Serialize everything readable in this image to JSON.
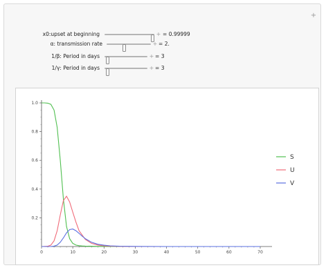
{
  "controls": [
    {
      "label": "x0:upset at beginning",
      "value": "0.99999",
      "fraction": 0.97
    },
    {
      "label": "α: transmission rate",
      "value": "2.",
      "fraction": 0.4
    },
    {
      "label": "1/β: Period in days",
      "value": "3",
      "fraction": 0.08
    },
    {
      "label": "1/γ: Period in days",
      "value": "3",
      "fraction": 0.08
    }
  ],
  "icons": {
    "panel_toggle": "plus-icon",
    "add_button": "plus-icon"
  },
  "plus_glyph": "+",
  "value_prefix": "=",
  "chart_data": {
    "type": "line",
    "title": "",
    "xlabel": "",
    "ylabel": "",
    "xlim": [
      0,
      72
    ],
    "ylim": [
      0,
      1.0
    ],
    "x_ticks": [
      0,
      10,
      20,
      30,
      40,
      50,
      60,
      70
    ],
    "y_ticks": [
      0.2,
      0.4,
      0.6,
      0.8,
      1.0
    ],
    "legend_position": "right",
    "series": [
      {
        "name": "S",
        "color": "#4fbf4f",
        "x": [
          0,
          1,
          2,
          3,
          4,
          5,
          6,
          7,
          8,
          9,
          10,
          11,
          12,
          13,
          14,
          16,
          18,
          20,
          25,
          30,
          40,
          50,
          60,
          70
        ],
        "y": [
          1.0,
          1.0,
          0.998,
          0.99,
          0.95,
          0.83,
          0.6,
          0.33,
          0.14,
          0.055,
          0.022,
          0.01,
          0.006,
          0.004,
          0.003,
          0.002,
          0.001,
          0.001,
          0.0,
          0.0,
          0.0,
          0.0,
          0.0,
          0.0
        ]
      },
      {
        "name": "U",
        "color": "#f06a78",
        "x": [
          0,
          2,
          3,
          4,
          5,
          6,
          7,
          8,
          9,
          10,
          11,
          12,
          14,
          16,
          18,
          20,
          22,
          25,
          30,
          40,
          50,
          60,
          70
        ],
        "y": [
          0.0,
          0.002,
          0.01,
          0.04,
          0.11,
          0.22,
          0.32,
          0.35,
          0.31,
          0.24,
          0.17,
          0.11,
          0.05,
          0.022,
          0.01,
          0.005,
          0.003,
          0.001,
          0.0,
          0.0,
          0.0,
          0.0,
          0.0
        ]
      },
      {
        "name": "V",
        "color": "#5a6fe0",
        "x": [
          0,
          3,
          4,
          5,
          6,
          7,
          8,
          9,
          10,
          11,
          12,
          13,
          14,
          16,
          18,
          20,
          22,
          25,
          30,
          40,
          50,
          60,
          70
        ],
        "y": [
          0.0,
          0.0,
          0.003,
          0.01,
          0.03,
          0.06,
          0.095,
          0.118,
          0.122,
          0.11,
          0.092,
          0.072,
          0.055,
          0.03,
          0.016,
          0.009,
          0.005,
          0.002,
          0.001,
          0.0,
          0.0,
          0.0,
          0.0
        ]
      }
    ]
  }
}
